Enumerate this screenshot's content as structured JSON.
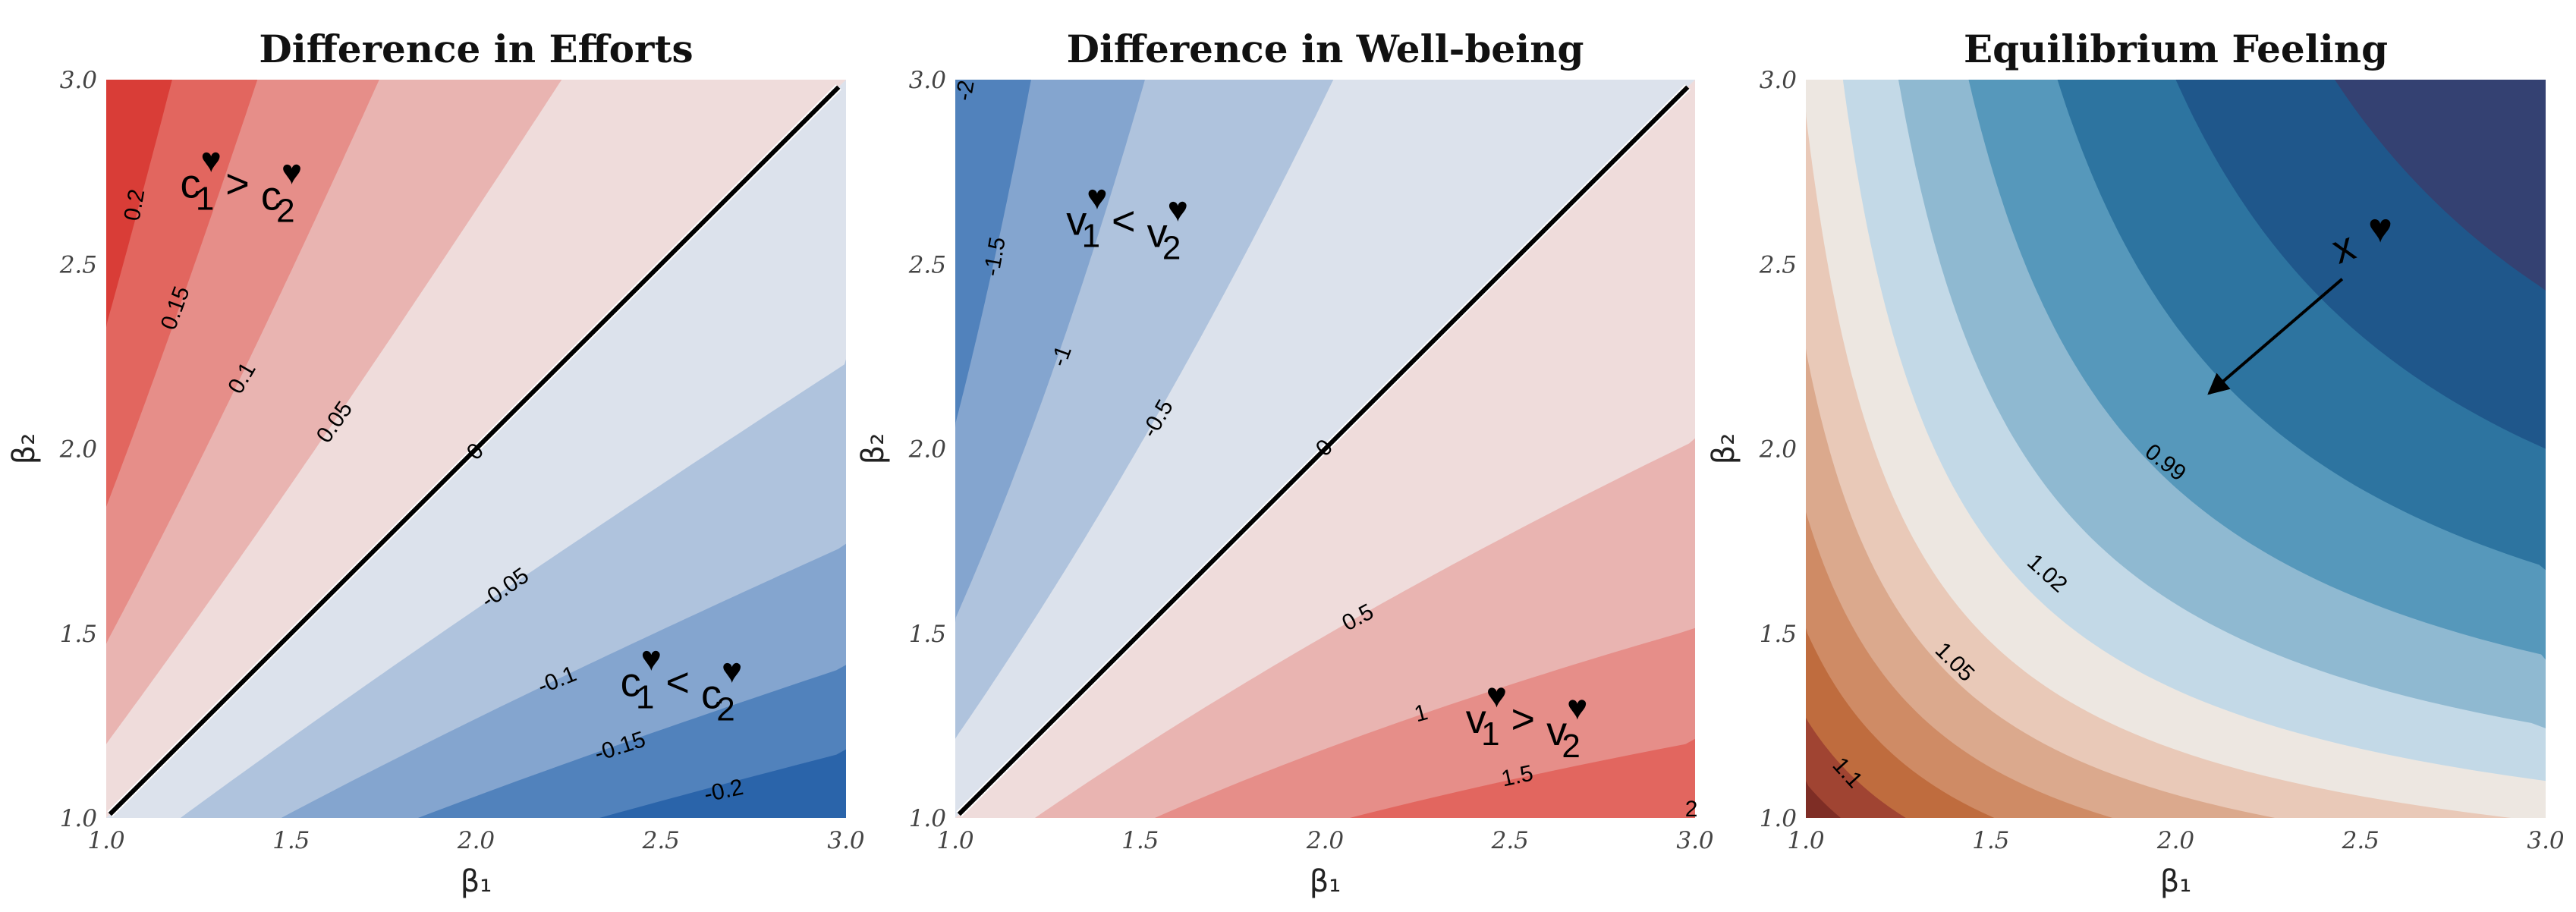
{
  "chart_data": [
    {
      "type": "contour",
      "title": "Difference in Efforts",
      "xlabel": "β₁",
      "ylabel": "β₂",
      "xlim": [
        1.0,
        3.0
      ],
      "ylim": [
        1.0,
        3.0
      ],
      "xticks": [
        "1.0",
        "1.5",
        "2.0",
        "2.5",
        "3.0"
      ],
      "yticks": [
        "1.0",
        "1.5",
        "2.0",
        "2.5",
        "3.0"
      ],
      "levels": [
        -0.2,
        -0.15,
        -0.1,
        -0.05,
        0,
        0.05,
        0.1,
        0.15,
        0.2
      ],
      "band_colors": [
        "#2A64AA",
        "#5182BC",
        "#84A5CF",
        "#AFC3DD",
        "#DCE2EC",
        "#EFDCDB",
        "#E9B4B1",
        "#E68E89",
        "#E2665F",
        "#D93D37"
      ],
      "zero_line_color": "#000000",
      "contour_labels": [
        "0.2",
        "0.15",
        "0.1",
        "0.05",
        "0",
        "-0.05",
        "-0.1",
        "-0.15",
        "-0.2"
      ],
      "annotations": [
        {
          "left": "c",
          "left_sub": "1",
          "op": ">",
          "right": "c",
          "right_sub": "2",
          "mark": "♥"
        },
        {
          "left": "c",
          "left_sub": "1",
          "op": "<",
          "right": "c",
          "right_sub": "2",
          "mark": "♥"
        }
      ]
    },
    {
      "type": "contour",
      "title": "Difference in Well-being",
      "xlabel": "β₁",
      "ylabel": "β₂",
      "xlim": [
        1.0,
        3.0
      ],
      "ylim": [
        1.0,
        3.0
      ],
      "xticks": [
        "1.0",
        "1.5",
        "2.0",
        "2.5",
        "3.0"
      ],
      "yticks": [
        "1.0",
        "1.5",
        "2.0",
        "2.5",
        "3.0"
      ],
      "levels": [
        -2,
        -1.5,
        -1,
        -0.5,
        0,
        0.5,
        1,
        1.5,
        2
      ],
      "band_colors": [
        "#2A64AA",
        "#5182BC",
        "#84A5CF",
        "#AFC3DD",
        "#DCE2EC",
        "#EFDCDB",
        "#E9B4B1",
        "#E68E89",
        "#E2665F",
        "#D93D37"
      ],
      "zero_line_color": "#000000",
      "contour_labels": [
        "-2",
        "-1.5",
        "-1",
        "-0.5",
        "0",
        "0.5",
        "1",
        "1.5",
        "2"
      ],
      "annotations": [
        {
          "left": "v",
          "left_sub": "1",
          "op": "<",
          "right": "v",
          "right_sub": "2",
          "mark": "♥"
        },
        {
          "left": "v",
          "left_sub": "1",
          "op": ">",
          "right": "v",
          "right_sub": "2",
          "mark": "♥"
        }
      ]
    },
    {
      "type": "contour",
      "title": "Equilibrium Feeling",
      "xlabel": "β₁",
      "ylabel": "β₂",
      "xlim": [
        1.0,
        3.0
      ],
      "ylim": [
        1.0,
        3.0
      ],
      "xticks": [
        "1.0",
        "1.5",
        "2.0",
        "2.5",
        "3.0"
      ],
      "yticks": [
        "1.0",
        "1.5",
        "2.0",
        "2.5",
        "3.0"
      ],
      "levels": [
        0.945,
        0.96,
        0.975,
        0.99,
        1.005,
        1.02,
        1.035,
        1.05,
        1.065,
        1.08,
        1.095,
        1.11
      ],
      "band_colors": [
        "#344172",
        "#1F578B",
        "#2D74A0",
        "#5698BB",
        "#8FB9D1",
        "#C3D9E7",
        "#EDE7E1",
        "#E9C9B8",
        "#DBA98D",
        "#CF8B65",
        "#BF6C3E",
        "#A04432",
        "#7E2D25"
      ],
      "contour_labels": [
        "0.99",
        "1.02",
        "1.05",
        "1.1"
      ],
      "arrow_annotation": {
        "label": "x",
        "mark": "♥"
      }
    }
  ]
}
